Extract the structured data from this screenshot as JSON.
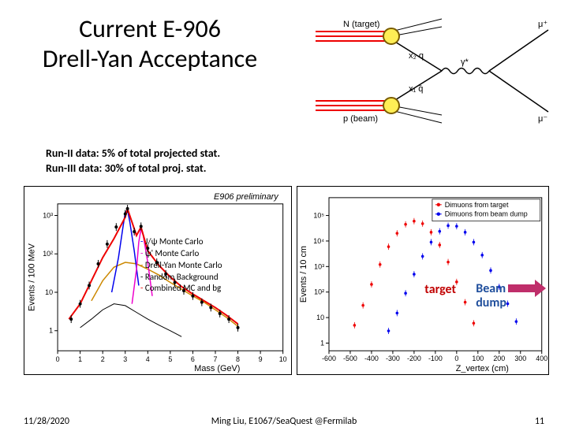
{
  "title_line1": "Current E-906",
  "title_line2": "Drell-Yan Acceptance",
  "notes_line1": "Run-II  data:  5% of total projected stat.",
  "notes_line2": "Run-III data:  30% of total proj. stat.",
  "feynman": {
    "top_label": "N (target)",
    "bottom_label": "p (beam)",
    "mu_plus": "μ⁺",
    "mu_minus": "μ⁻",
    "x2q": "x₂ q",
    "x1q": "x₁ q̄",
    "gamma": "γ*",
    "quark_line_color": "#ee0000",
    "vertex_fill": "#ffee55",
    "vertex_stroke": "#7a5c00"
  },
  "mass_chart": {
    "type": "histogram",
    "title": "E906 preliminary",
    "xlabel": "Mass (GeV)",
    "ylabel": "Events / 100 MeV",
    "xlim": [
      0,
      10
    ],
    "ylim": [
      0.3,
      2000
    ],
    "yscale": "log",
    "xticks": [
      0,
      1,
      2,
      3,
      4,
      5,
      6,
      7,
      8,
      9,
      10
    ],
    "ytick_labels": [
      "1",
      "10",
      "10²",
      "10³"
    ],
    "ytick_values": [
      1,
      10,
      100,
      1000
    ],
    "series": [
      {
        "name": "J/ψ Monte Carlo",
        "color": "#0000ee",
        "dash": "J/ψ"
      },
      {
        "name": "ψ' Monte Carlo",
        "color": "#ee00cc",
        "dash": "ψ'"
      },
      {
        "name": "Drell-Yan Monte Carlo",
        "color": "#cc8800",
        "dash": "Drell-Yan"
      },
      {
        "name": "Random Background",
        "color": "#000000",
        "dash": "Random"
      },
      {
        "name": "Combined MC and bg",
        "color": "#ee0000",
        "dash": "Combined"
      }
    ],
    "combined_x": [
      0.5,
      1.0,
      1.5,
      2.0,
      2.5,
      3.0,
      3.1,
      3.5,
      3.7,
      4.0,
      4.5,
      5.0,
      5.5,
      6.0,
      6.5,
      7.0,
      7.5,
      8.0
    ],
    "combined_y": [
      2,
      5,
      20,
      80,
      250,
      900,
      1500,
      300,
      500,
      120,
      50,
      25,
      14,
      9,
      6,
      4,
      2.5,
      1.5
    ],
    "drellyan_x": [
      1.5,
      2.0,
      2.5,
      3.0,
      3.5,
      4.0,
      4.5,
      5.0,
      5.5,
      6.0,
      6.5,
      7.0,
      7.5,
      8.0
    ],
    "drellyan_y": [
      6,
      20,
      45,
      60,
      55,
      40,
      28,
      18,
      12,
      8,
      5.5,
      3.5,
      2.2,
      1.3
    ],
    "jpsi_x": [
      2.4,
      2.7,
      2.9,
      3.0,
      3.1,
      3.2,
      3.4,
      3.6
    ],
    "jpsi_y": [
      10,
      80,
      500,
      1200,
      1400,
      700,
      120,
      15
    ],
    "psip_x": [
      3.3,
      3.5,
      3.6,
      3.7,
      3.8,
      4.0,
      4.2
    ],
    "psip_y": [
      5,
      40,
      200,
      450,
      300,
      60,
      8
    ],
    "random_x": [
      1.0,
      1.5,
      2.0,
      2.5,
      3.0,
      3.5,
      4.0,
      4.5,
      5.0,
      5.5
    ],
    "random_y": [
      1.2,
      2,
      3.5,
      5,
      4.5,
      3,
      2,
      1.4,
      1,
      0.7
    ],
    "data_x": [
      0.6,
      1.0,
      1.4,
      1.8,
      2.2,
      2.6,
      3.0,
      3.1,
      3.4,
      3.7,
      4.0,
      4.4,
      4.8,
      5.2,
      5.6,
      6.0,
      6.4,
      6.8,
      7.2,
      7.6,
      8.0
    ],
    "data_y": [
      2,
      5,
      15,
      55,
      180,
      500,
      1100,
      1500,
      380,
      520,
      140,
      60,
      30,
      18,
      11,
      8,
      5.5,
      4,
      2.8,
      2,
      1.2
    ]
  },
  "zvtx_chart": {
    "type": "scatter",
    "xlabel": "Z_vertex (cm)",
    "ylabel": "Events / 10 cm",
    "xlim": [
      -600,
      400
    ],
    "ylim": [
      0.5,
      500000
    ],
    "yscale": "log",
    "xticks": [
      -600,
      -500,
      -400,
      -300,
      -200,
      -100,
      0,
      100,
      200,
      300,
      400
    ],
    "ytick_labels": [
      "1",
      "10",
      "10²",
      "10³",
      "10⁴",
      "10⁵"
    ],
    "ytick_values": [
      1,
      10,
      100,
      1000,
      10000,
      100000
    ],
    "legend": [
      {
        "label": "Dimuons from target",
        "color": "#ee0000",
        "marker": "circle"
      },
      {
        "label": "Dimuons from beam dump",
        "color": "#0000ee",
        "marker": "circle"
      }
    ],
    "target_x": [
      -480,
      -440,
      -400,
      -360,
      -320,
      -280,
      -240,
      -200,
      -160,
      -120,
      -80,
      -40,
      0,
      40,
      80
    ],
    "target_y": [
      5,
      30,
      200,
      1200,
      6000,
      20000,
      45000,
      60000,
      48000,
      22000,
      7000,
      1500,
      250,
      40,
      6
    ],
    "dump_x": [
      -320,
      -280,
      -240,
      -200,
      -160,
      -120,
      -80,
      -40,
      0,
      40,
      80,
      120,
      160,
      200,
      240,
      280
    ],
    "dump_y": [
      3,
      15,
      90,
      500,
      2500,
      9000,
      24000,
      40000,
      38000,
      22000,
      9000,
      2800,
      700,
      160,
      35,
      7
    ]
  },
  "legend_left": {
    "items": [
      {
        "dash": "-",
        "color": "#0000ee",
        "text": "J/ψ Monte Carlo"
      },
      {
        "dash": "-",
        "color": "#ee00cc",
        "text": "ψ' Monte Carlo"
      },
      {
        "dash": "-",
        "color": "#cc8800",
        "text": "Drell-Yan Monte Carlo"
      },
      {
        "dash": "-",
        "color": "#000000",
        "text": "Random Background"
      },
      {
        "dash": "-",
        "color": "#ee0000",
        "text": "Combined MC and bg"
      }
    ]
  },
  "target_label": "target",
  "beam_label_l1": "Beam",
  "beam_label_l2": "dump",
  "beam_arrow_color": "#bf2e6a",
  "footer": {
    "date": "11/28/2020",
    "mid": "Ming Liu, E1067/SeaQuest @Fermilab",
    "page": "11"
  }
}
